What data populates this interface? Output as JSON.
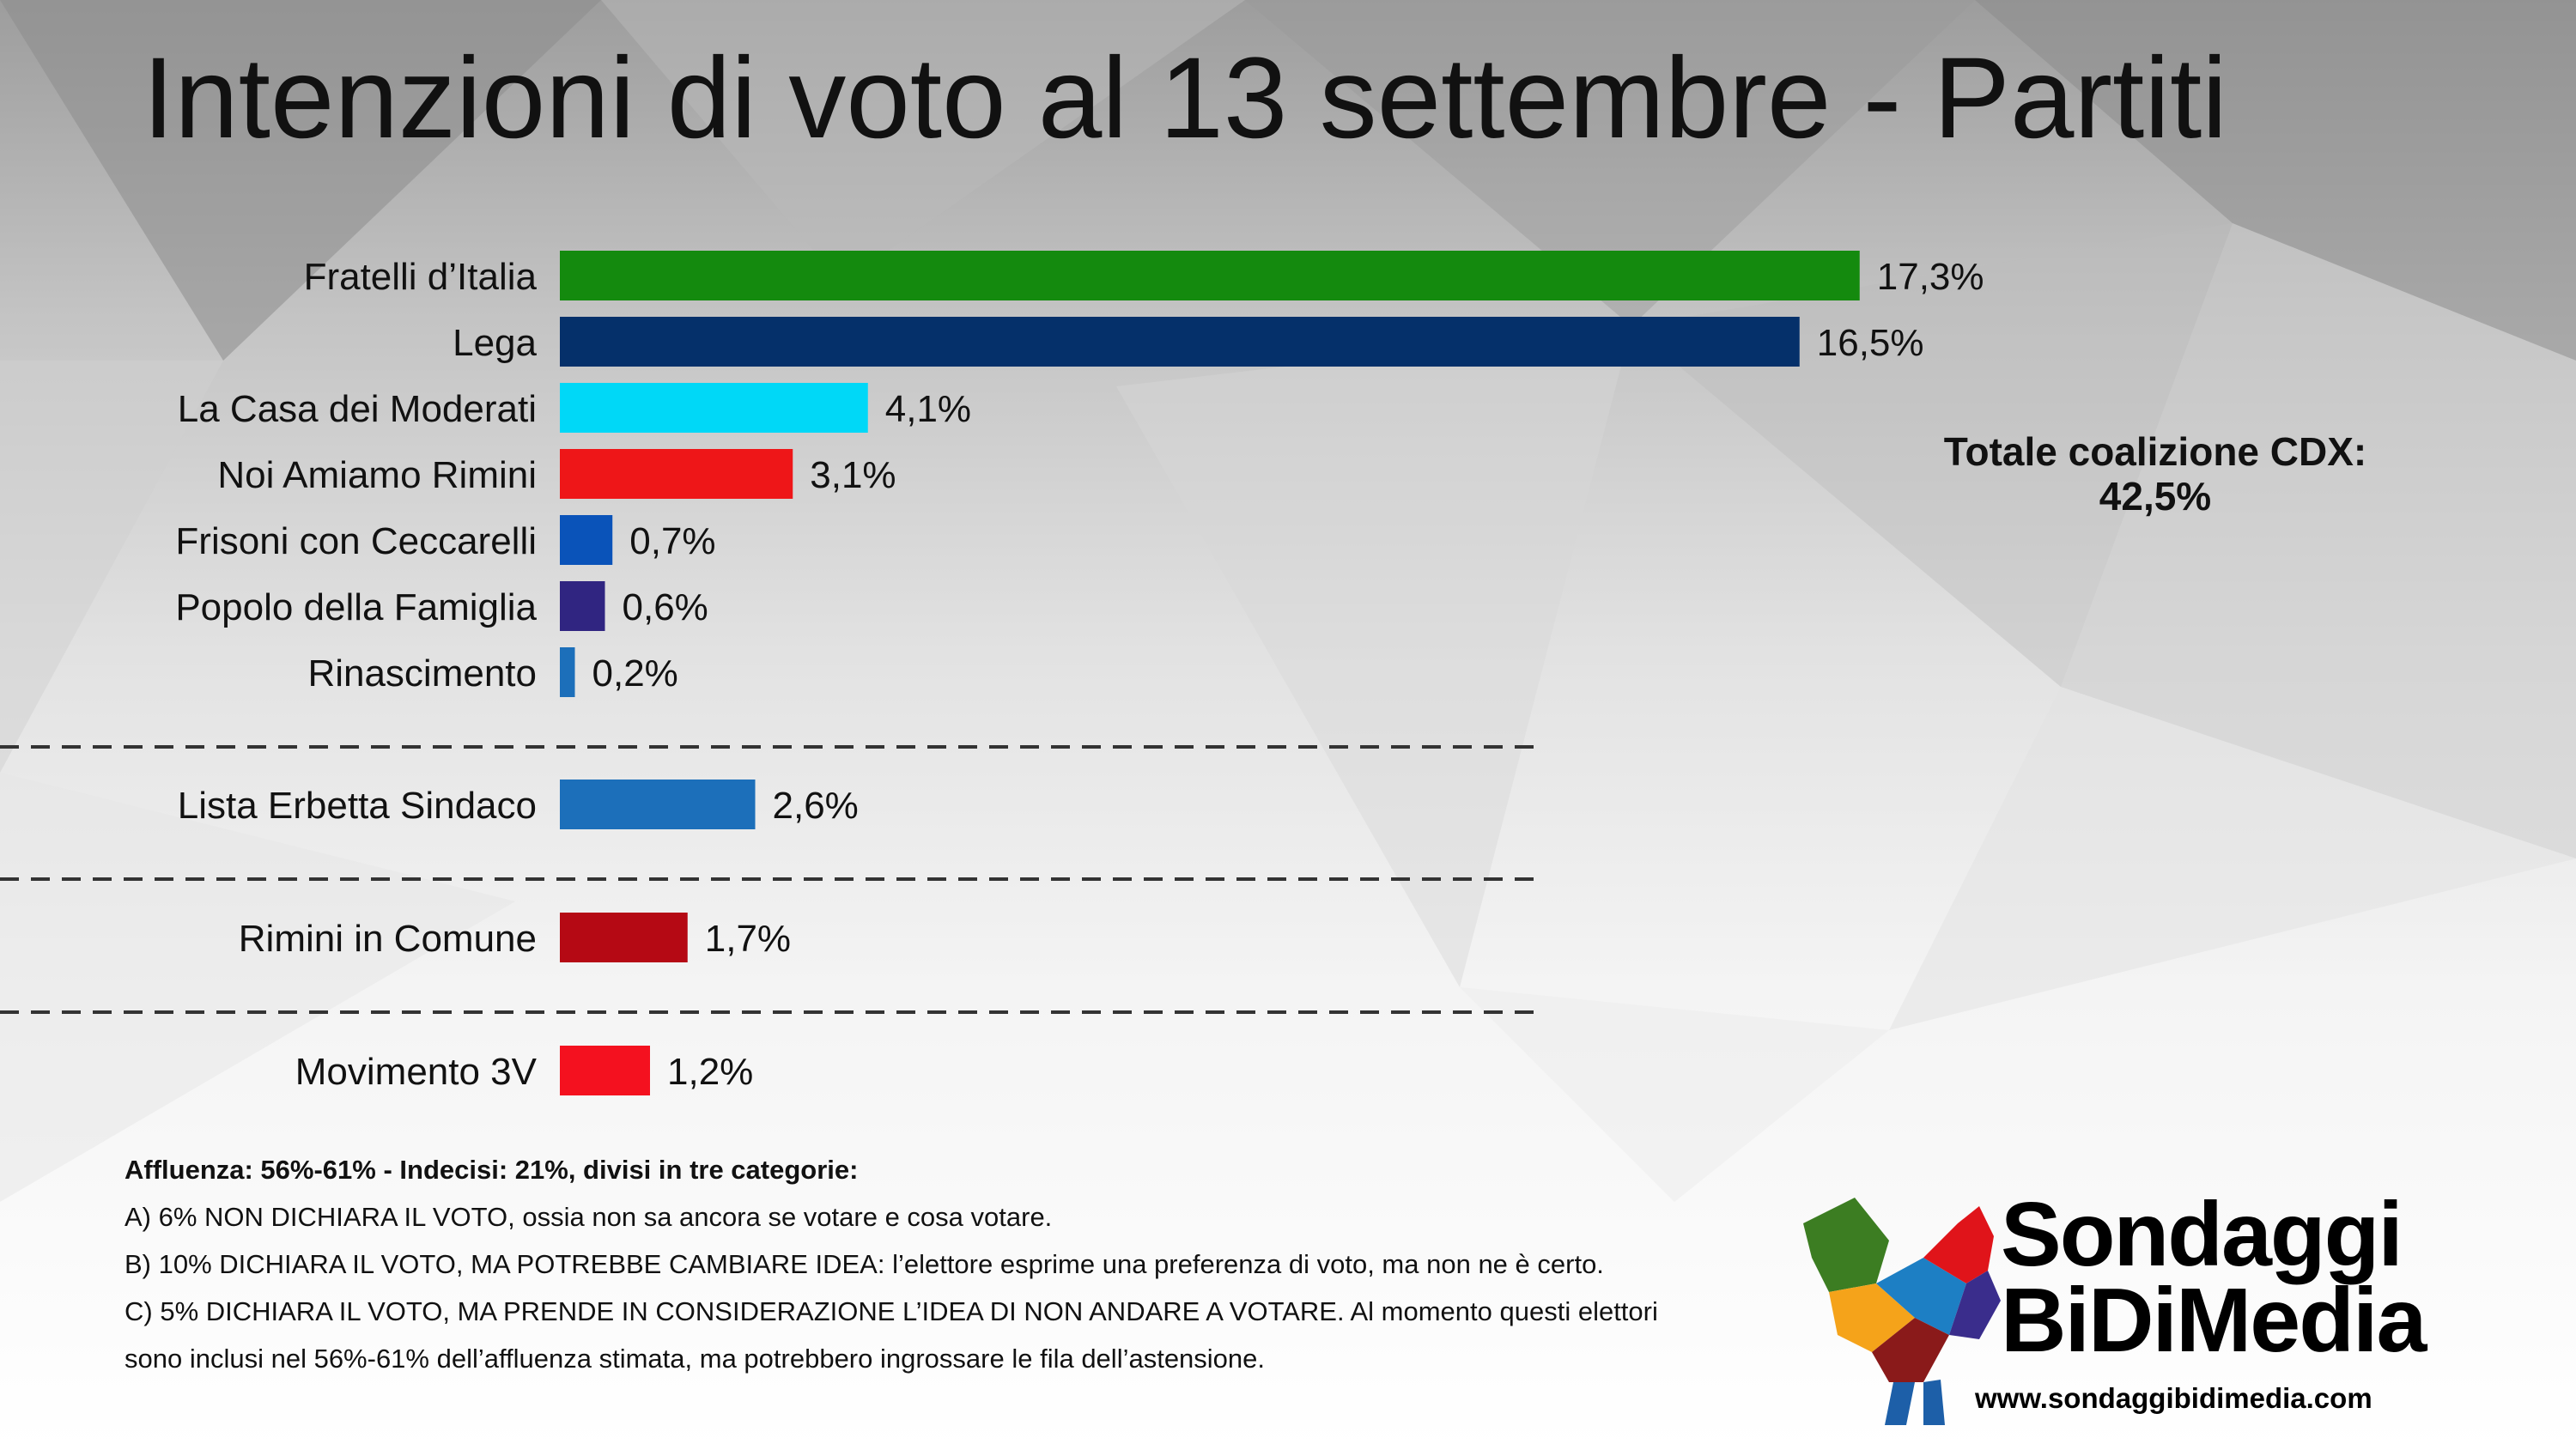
{
  "title": "Intenzioni di voto al 13 settembre - Partiti",
  "coalition_note": {
    "label": "Totale coalizione CDX:",
    "value": "42,5%"
  },
  "chart_data": {
    "type": "bar",
    "orientation": "horizontal",
    "title": "Intenzioni di voto al 13 settembre - Partiti",
    "xlabel": "",
    "ylabel": "",
    "unit": "%",
    "categories": [
      "Fratelli d’Italia",
      "Lega",
      "La Casa dei Moderati",
      "Noi Amiamo Rimini",
      "Frisoni con Ceccarelli",
      "Popolo della Famiglia",
      "Rinascimento",
      "Lista Erbetta Sindaco",
      "Rimini in Comune",
      "Movimento 3V"
    ],
    "values": [
      17.3,
      16.5,
      4.1,
      3.1,
      0.7,
      0.6,
      0.2,
      2.6,
      1.7,
      1.2
    ],
    "data_labels": [
      "17,3%",
      "16,5%",
      "4,1%",
      "3,1%",
      "0,7%",
      "0,6%",
      "0,2%",
      "2,6%",
      "1,7%",
      "1,2%"
    ],
    "colors": [
      "#148a0e",
      "#05306a",
      "#00d8f7",
      "#ee1618",
      "#0a53b9",
      "#302581",
      "#1c6fba",
      "#1c6fba",
      "#b50914",
      "#f4111f"
    ],
    "group_separators_after": [
      "Rinascimento",
      "Lista Erbetta Sindaco",
      "Rimini in Comune"
    ],
    "grid": false,
    "legend": "none"
  },
  "notes": {
    "header": "Affluenza: 56%-61% - Indecisi: 21%, divisi in tre categorie:",
    "line_a": "A) 6% NON DICHIARA IL VOTO, ossia non sa ancora se votare e cosa votare.",
    "line_b": "B) 10% DICHIARA IL VOTO, MA POTREBBE CAMBIARE IDEA: l’elettore esprime una preferenza di voto, ma non ne è certo.",
    "line_c": "C) 5% DICHIARA IL VOTO, MA PRENDE IN CONSIDERAZIONE L’IDEA DI NON ANDARE A VOTARE. Al momento questi elettori sono inclusi nel 56%-61% dell’affluenza stimata, ma potrebbero ingrossare le fila dell’astensione."
  },
  "logo": {
    "line1": "Sondaggi",
    "line2": "BiDiMedia",
    "url": "www.sondaggibidimedia.com"
  }
}
